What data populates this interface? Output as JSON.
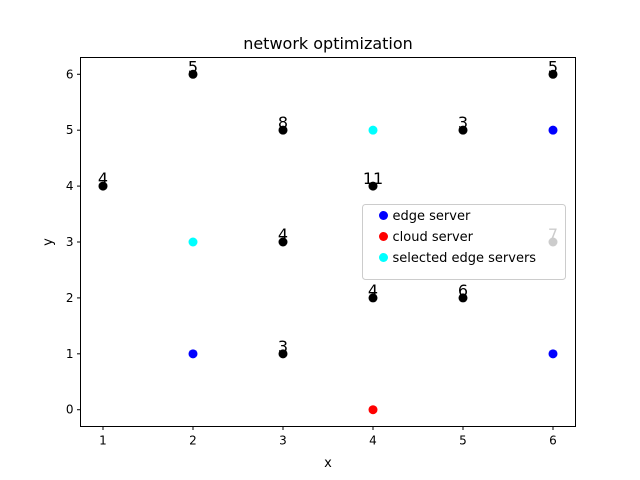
{
  "chart_data": {
    "type": "scatter",
    "title": "network optimization",
    "x_label": "x",
    "y_label": "y",
    "xlim": [
      0.75,
      6.25
    ],
    "ylim": [
      -0.3,
      6.3
    ],
    "xticks": [
      1,
      2,
      3,
      4,
      5,
      6
    ],
    "yticks": [
      0,
      1,
      2,
      3,
      4,
      5,
      6
    ],
    "grid": false,
    "legend": "center right",
    "series": [
      {
        "color": "#000000",
        "x": [
          2,
          3,
          1,
          3,
          4,
          5,
          6,
          4,
          5,
          3,
          6
        ],
        "y": [
          6,
          5,
          4,
          3,
          4,
          5,
          6,
          2,
          2,
          1,
          3
        ],
        "labels": [
          5,
          8,
          4,
          4,
          11,
          3,
          5,
          4,
          6,
          3,
          7
        ]
      },
      {
        "name": "edge server",
        "color": "#0000ff",
        "x": [
          6,
          2,
          6
        ],
        "y": [
          5,
          1,
          1
        ]
      },
      {
        "name": "cloud server",
        "color": "#ff0000",
        "x": [
          4
        ],
        "y": [
          0
        ]
      },
      {
        "name": "selected edge servers",
        "color": "#00ffff",
        "x": [
          2,
          4
        ],
        "y": [
          3,
          5
        ]
      }
    ]
  }
}
